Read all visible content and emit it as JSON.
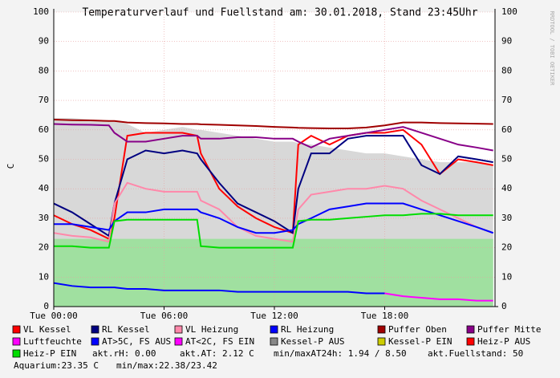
{
  "chart_data": {
    "type": "line",
    "title": "Temperaturverlauf und Fuellstand am: 30.01.2018, Stand 23:45Uhr",
    "y_label": "C",
    "watermark": "RRDTOOL / TOBI OETIKER",
    "x": [
      0,
      1,
      2,
      3,
      3.3,
      4,
      5,
      6,
      7,
      7.8,
      8,
      9,
      10,
      11,
      12,
      13,
      13.3,
      14,
      15,
      16,
      17,
      18,
      19,
      20,
      21,
      22,
      23,
      23.9
    ],
    "xlim": [
      0,
      24
    ],
    "xticks": [
      {
        "value": 0,
        "label": "Tue 00:00"
      },
      {
        "value": 6,
        "label": "Tue 06:00"
      },
      {
        "value": 12,
        "label": "Tue 12:00"
      },
      {
        "value": 18,
        "label": "Tue 18:00"
      }
    ],
    "ylim": [
      0,
      100
    ],
    "yticks": [
      0,
      10,
      20,
      30,
      40,
      50,
      60,
      70,
      80,
      90,
      100
    ],
    "grid": true,
    "series": [
      {
        "name": "VL Kessel",
        "color": "#ff0000",
        "kind": "line",
        "values": [
          31,
          28,
          26,
          23,
          30,
          58,
          59,
          59,
          59,
          58,
          52,
          40,
          34,
          30,
          27,
          25,
          55,
          58,
          55,
          58,
          59,
          59,
          60,
          55,
          45,
          50,
          49,
          48
        ]
      },
      {
        "name": "RL Kessel",
        "color": "#000080",
        "kind": "line",
        "values": [
          35,
          32,
          28,
          24,
          35,
          50,
          53,
          52,
          53,
          52,
          50,
          42,
          35,
          32,
          29,
          25,
          40,
          52,
          52,
          57,
          58,
          58,
          58,
          48,
          45,
          51,
          50,
          49
        ]
      },
      {
        "name": "VL Heizung",
        "color": "#ff88aa",
        "kind": "line",
        "values": [
          25,
          24,
          23.5,
          22,
          35,
          42,
          40,
          39,
          39,
          39,
          36,
          33,
          27,
          24,
          23,
          22,
          33,
          38,
          39,
          40,
          40,
          41,
          40,
          36,
          33,
          30,
          27,
          25
        ]
      },
      {
        "name": "RL Heizung",
        "color": "#0000ff",
        "kind": "line",
        "values": [
          28,
          28,
          27,
          26,
          29,
          32,
          32,
          33,
          33,
          33,
          32,
          30,
          27,
          25,
          25,
          26,
          28,
          30,
          33,
          34,
          35,
          35,
          35,
          33,
          31,
          29,
          27,
          25
        ]
      },
      {
        "name": "Puffer Oben",
        "color": "#a00000",
        "kind": "line",
        "values": [
          63.5,
          63.3,
          63.2,
          63,
          63,
          62.5,
          62.3,
          62.2,
          62,
          62,
          61.9,
          61.7,
          61.5,
          61.3,
          61,
          60.8,
          60.7,
          60.6,
          60.5,
          60.5,
          60.8,
          61.5,
          62.5,
          62.5,
          62.3,
          62.2,
          62.1,
          62
        ]
      },
      {
        "name": "Puffer Mitte",
        "color": "#880088",
        "kind": "line",
        "values": [
          62,
          61.8,
          61.7,
          61.5,
          59,
          56,
          56,
          57,
          58,
          58,
          57,
          57,
          57.5,
          57.5,
          57,
          57,
          56,
          54,
          57,
          58,
          59,
          60,
          61,
          59,
          57,
          55,
          54,
          53
        ]
      },
      {
        "name": "Luftfeuchte",
        "color": "#ff00ff",
        "kind": "line"
      },
      {
        "name": "AT>5C, FS AUS",
        "color": "#0000ff",
        "kind": "line",
        "values": [
          8,
          7,
          6.5,
          6.5,
          6.5,
          6,
          6,
          5.5,
          5.5,
          5.5,
          5.5,
          5.5,
          5,
          5,
          5,
          5,
          5,
          5,
          5,
          5,
          4.5,
          4.5,
          null,
          null,
          null,
          null,
          null,
          null
        ]
      },
      {
        "name": "AT<2C, FS EIN",
        "color": "#ff00ff",
        "kind": "line",
        "values": [
          null,
          null,
          null,
          null,
          null,
          null,
          null,
          null,
          null,
          null,
          null,
          null,
          null,
          null,
          null,
          null,
          null,
          null,
          null,
          null,
          null,
          4.5,
          3.5,
          3,
          2.5,
          2.5,
          2,
          2
        ]
      },
      {
        "name": "Kessel-P AUS",
        "color": "#888888",
        "kind": "area",
        "fill": "#d8d8d8",
        "values": [
          64,
          64,
          63.5,
          63,
          63,
          62,
          59,
          60,
          61,
          60,
          60,
          59,
          58,
          57,
          56,
          56,
          55.5,
          55,
          54,
          53,
          52,
          52,
          51,
          50,
          49,
          49,
          49,
          48
        ]
      },
      {
        "name": "Kessel-P EIN",
        "color": "#cccc00",
        "kind": "line"
      },
      {
        "name": "Heiz-P AUS",
        "color": "#ff0000",
        "kind": "line"
      },
      {
        "name": "Heiz-P EIN",
        "color": "#00dd00",
        "kind": "line",
        "values": [
          20.5,
          20.5,
          20,
          20,
          29,
          29.5,
          29.5,
          29.5,
          29.5,
          29.5,
          20.5,
          20,
          20,
          20,
          20,
          20,
          29,
          29.5,
          29.5,
          30,
          30.5,
          31,
          31,
          31.5,
          31.5,
          31,
          31,
          31
        ]
      },
      {
        "color": "#a0e0a0",
        "kind": "area",
        "fill": "#a0e0a0",
        "values": [
          23,
          23,
          23,
          23,
          23,
          23,
          23,
          23,
          23,
          23,
          23,
          23,
          23,
          23,
          23,
          23,
          23,
          23,
          23,
          23,
          23,
          23,
          23,
          23,
          23,
          23,
          23,
          23
        ]
      }
    ],
    "footer": [
      "akt.rH: 0.00",
      "akt.AT: 2.12 C",
      "min/maxAT24h: 1.94 / 8.50",
      "akt.Fuellstand:  50",
      "Aquarium:23.35 C",
      "min/max:22.38/23.42"
    ]
  }
}
